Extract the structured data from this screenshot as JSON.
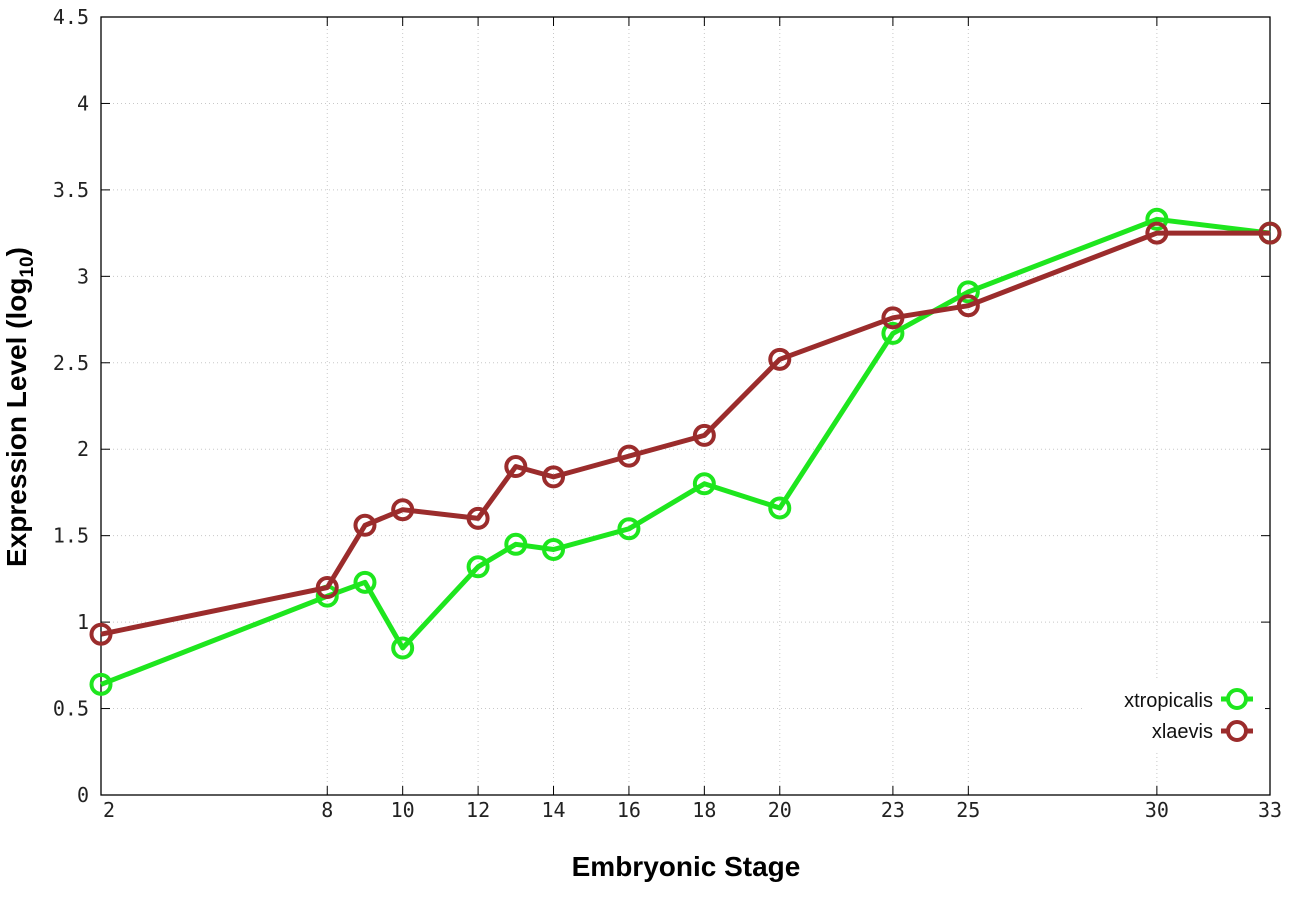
{
  "chart_data": {
    "type": "line",
    "title": "",
    "xlabel": "Embryonic Stage",
    "ylabel_main": "Expression Level (log",
    "ylabel_sub": "10",
    "ylabel_close": ")",
    "xlim": [
      2,
      33
    ],
    "ylim": [
      0,
      4.5
    ],
    "x_ticks": [
      2,
      8,
      10,
      12,
      14,
      16,
      18,
      20,
      23,
      25,
      30,
      33
    ],
    "x_tick_labels": [
      "2",
      "8",
      "10",
      "12",
      "14",
      "16",
      "18",
      "20",
      "23",
      "25",
      "30",
      "33"
    ],
    "y_ticks": [
      0,
      0.5,
      1,
      1.5,
      2,
      2.5,
      3,
      3.5,
      4,
      4.5
    ],
    "y_tick_labels": [
      "0",
      "0.5",
      "1",
      "1.5",
      "2",
      "2.5",
      "3",
      "3.5",
      "4",
      "4.5"
    ],
    "grid": true,
    "legend_position": "bottom-right",
    "series": [
      {
        "name": "xtropicalis",
        "color": "#1ee61e",
        "x": [
          2,
          8,
          9,
          10,
          12,
          13,
          14,
          16,
          18,
          20,
          23,
          25,
          30,
          33
        ],
        "y": [
          0.64,
          1.15,
          1.23,
          0.85,
          1.32,
          1.45,
          1.42,
          1.54,
          1.8,
          1.66,
          2.67,
          2.91,
          3.33,
          3.25
        ]
      },
      {
        "name": "xlaevis",
        "color": "#9b2c2c",
        "x": [
          2,
          8,
          9,
          10,
          12,
          13,
          14,
          16,
          18,
          20,
          23,
          25,
          30,
          33
        ],
        "y": [
          0.93,
          1.2,
          1.56,
          1.65,
          1.6,
          1.9,
          1.84,
          1.96,
          2.08,
          2.52,
          2.76,
          2.83,
          3.25,
          3.25
        ]
      }
    ]
  }
}
